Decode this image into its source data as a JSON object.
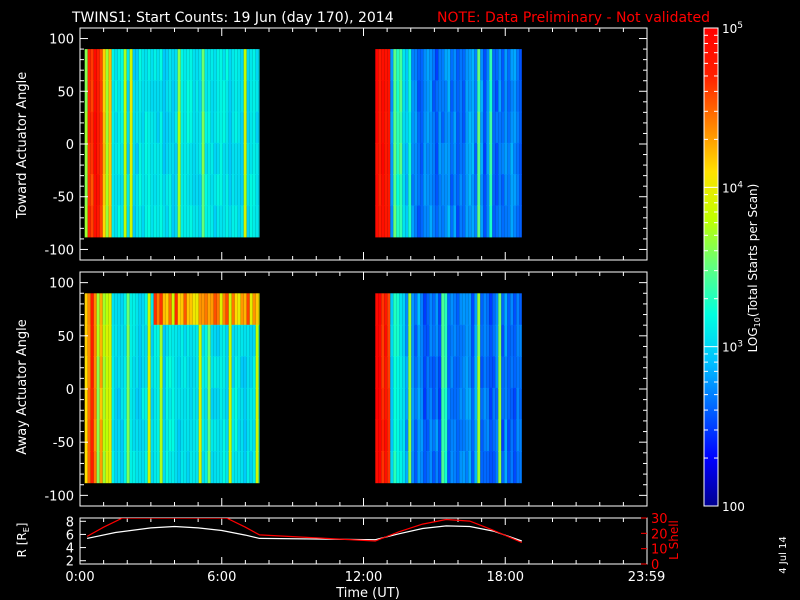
{
  "title": {
    "main": "TWINS1: Start Counts: 19 Jun (day 170), 2014",
    "note": "NOTE: Data Preliminary - Not validated",
    "note_color": "#ff0000"
  },
  "side_date": "4 Jul 14",
  "chart_data": [
    {
      "type": "heatmap",
      "panel": "toward",
      "ylabel": "Toward Actuator Angle",
      "ylim": [
        -110,
        110
      ],
      "yticks": [
        100,
        50,
        0,
        -50,
        -100
      ],
      "x_range_hours": [
        0,
        24
      ],
      "data_coverage_hours": [
        [
          0.2,
          7.6
        ],
        [
          12.5,
          18.7
        ]
      ],
      "angle_coverage_deg": [
        -88,
        90
      ]
    },
    {
      "type": "heatmap",
      "panel": "away",
      "ylabel": "Away Actuator Angle",
      "ylim": [
        -110,
        110
      ],
      "yticks": [
        100,
        50,
        0,
        -50,
        -100
      ],
      "x_range_hours": [
        0,
        24
      ],
      "data_coverage_hours": [
        [
          0.2,
          7.6
        ],
        [
          12.5,
          18.7
        ]
      ],
      "angle_coverage_deg": [
        -88,
        90
      ]
    },
    {
      "type": "line",
      "panel": "ephemeris",
      "xlabel": "Time (UT)",
      "xtick_labels": [
        "0:00",
        "6:00",
        "12:00",
        "18:00",
        "23:59"
      ],
      "xticks_hours": [
        0,
        6,
        12,
        18,
        23.98
      ],
      "left_axis": {
        "label": "R [R",
        "label_sub": "E",
        "label_close": "]",
        "ylim": [
          1.5,
          8.5
        ],
        "yticks": [
          2,
          4,
          6,
          8
        ],
        "color": "#ffffff"
      },
      "right_axis": {
        "label": "L Shell",
        "ylim": [
          0,
          30
        ],
        "yticks": [
          0,
          10,
          20,
          30
        ],
        "color": "#ff0000"
      },
      "series": [
        {
          "axis": "left",
          "color": "#ffffff",
          "x": [
            0.3,
            1.5,
            3,
            4,
            5,
            6,
            7,
            7.6,
            12.5,
            13.5,
            14.5,
            15.5,
            16.5,
            17.5,
            18.7
          ],
          "y": [
            5.4,
            6.3,
            7.0,
            7.2,
            7.0,
            6.6,
            5.9,
            5.4,
            5.2,
            6.1,
            6.9,
            7.3,
            7.2,
            6.5,
            5.0
          ]
        },
        {
          "axis": "right",
          "color": "#ff0000",
          "x": [
            0.3,
            1.0,
            1.8,
            2.1,
            6.2,
            7.0,
            7.6,
            12.5,
            13.5,
            14.5,
            15.5,
            16.5,
            17.5,
            18.7
          ],
          "y": [
            18,
            24,
            30,
            30,
            30,
            24,
            19,
            15,
            21,
            26,
            29,
            28,
            22,
            14
          ]
        }
      ]
    }
  ],
  "colorbar": {
    "label": "LOG10(Total Starts per Scan)",
    "label_main": "LOG",
    "label_sub": "10",
    "label_rest": "(Total Starts per Scan)",
    "ticks": [
      {
        "value": 100,
        "text": "100"
      },
      {
        "value": 1000,
        "base": "10",
        "exp": "3"
      },
      {
        "value": 10000,
        "base": "10",
        "exp": "4"
      },
      {
        "value": 100000,
        "base": "10",
        "exp": "5"
      }
    ],
    "log_range": [
      2,
      5
    ],
    "stops": [
      "#000090",
      "#0000ff",
      "#0060ff",
      "#00c0ff",
      "#00ffe0",
      "#60ff80",
      "#c0ff00",
      "#ffe000",
      "#ff8000",
      "#ff2000",
      "#ff0000"
    ]
  }
}
